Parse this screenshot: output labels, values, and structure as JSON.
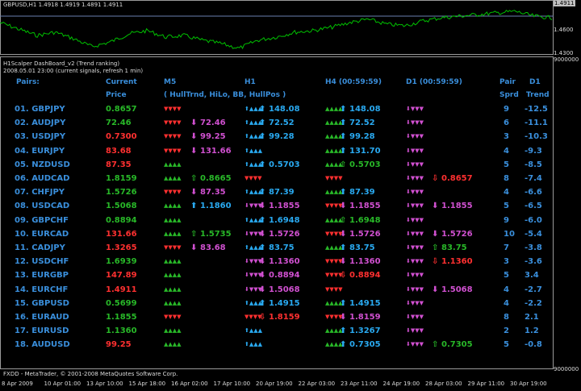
{
  "top_chart": {
    "title": "GBPUSD,H1  1.4918 1.4919 1.4891 1.4911",
    "price_labels": [
      "1.4911",
      "1.4600",
      "1.4300"
    ],
    "scale_color": "#00c000"
  },
  "main_chart": {
    "scale_top": "9000000",
    "scale_bottom": "9000000",
    "indicator_title": "H1Scalper DashBoard_v2 (Trend ranking)",
    "info_line": "2008.05.01 23:00  (current signals, refresh 1 min)",
    "footer": "FXDD - MetaTrader, © 2001-2008 MetaQuotes Software Corp.",
    "x_ticks": [
      "8 Apr 2009",
      "10 Apr 01:00",
      "13 Apr 10:00",
      "15 Apr 18:00",
      "16 Apr 02:00",
      "17 Apr 10:00",
      "20 Apr 19:00",
      "22 Apr 03:00",
      "23 Apr 11:00",
      "24 Apr 19:00",
      "28 Apr 03:00",
      "29 Apr 11:00",
      "30 Apr 19:00"
    ]
  },
  "dashboard": {
    "headers": {
      "pairs": "Pairs:",
      "current": "Current",
      "price": "Price",
      "m5": "M5",
      "m5_sub": "( HullTrnd, HiLo, BB, HullPos )",
      "h1": "H1",
      "h4": "H4 (00:59:59)",
      "d1": "D1 (00:59:59)",
      "pair": "Pair",
      "sprd": "Sprd",
      "d1trend": "D1",
      "trend": "Trend"
    },
    "rows": [
      {
        "name": "01. GBPJPY",
        "price": "0.8657",
        "pc": "green",
        "m5": "▼▼▼▼",
        "m5c": "red",
        "m5a": "",
        "m5v": "",
        "m5vc": "",
        "h1": "⬆▲▲▲",
        "h1c": "blue",
        "h1a": "⬆",
        "h1v": "148.08",
        "h1vc": "blue",
        "h4": "▲▲▲▲",
        "h4c": "green",
        "h4a": "⬆",
        "h4v": "148.08",
        "h4vc": "blue",
        "d1": "⬇▼▼▼",
        "d1c": "magenta",
        "d1a": "",
        "d1v": "",
        "d1vc": "",
        "sprd": "9",
        "trend": "-12.5"
      },
      {
        "name": "02. AUDJPY",
        "price": "72.46",
        "pc": "green",
        "m5": "▼▼▼▼",
        "m5c": "red",
        "m5a": "⬇",
        "m5v": "72.46",
        "m5vc": "magenta",
        "h1": "⬆▲▲▲",
        "h1c": "blue",
        "h1a": "⬆",
        "h1v": "72.52",
        "h1vc": "blue",
        "h4": "▲▲▲▲",
        "h4c": "green",
        "h4a": "⬆",
        "h4v": "72.52",
        "h4vc": "blue",
        "d1": "⬇▼▼▼",
        "d1c": "magenta",
        "d1a": "",
        "d1v": "",
        "d1vc": "",
        "sprd": "6",
        "trend": "-11.1"
      },
      {
        "name": "03. USDJPY",
        "price": "0.7300",
        "pc": "red",
        "m5": "▼▼▼▼",
        "m5c": "red",
        "m5a": "⬇",
        "m5v": "99.25",
        "m5vc": "magenta",
        "h1": "⬆▲▲▲",
        "h1c": "blue",
        "h1a": "⬆",
        "h1v": "99.28",
        "h1vc": "blue",
        "h4": "▲▲▲▲",
        "h4c": "green",
        "h4a": "⬆",
        "h4v": "99.28",
        "h4vc": "blue",
        "d1": "⬇▼▼▼",
        "d1c": "magenta",
        "d1a": "",
        "d1v": "",
        "d1vc": "",
        "sprd": "3",
        "trend": "-10.3"
      },
      {
        "name": "04. EURJPY",
        "price": "83.68",
        "pc": "red",
        "m5": "▼▼▼▼",
        "m5c": "red",
        "m5a": "⬇",
        "m5v": "131.66",
        "m5vc": "magenta",
        "h1": "⬆▲▲▲",
        "h1c": "blue",
        "h1a": "",
        "h1v": "",
        "h1vc": "",
        "h4": "▲▲▲▲",
        "h4c": "green",
        "h4a": "⬆",
        "h4v": "131.70",
        "h4vc": "blue",
        "d1": "⬇▼▼▼",
        "d1c": "magenta",
        "d1a": "",
        "d1v": "",
        "d1vc": "",
        "sprd": "4",
        "trend": "-9.3"
      },
      {
        "name": "05. NZDUSD",
        "price": "87.35",
        "pc": "red",
        "m5": "▲▲▲▲",
        "m5c": "green",
        "m5a": "",
        "m5v": "",
        "m5vc": "",
        "h1": "⬆▲▲▲",
        "h1c": "blue",
        "h1a": "⬆",
        "h1v": "0.5703",
        "h1vc": "blue",
        "h4": "▲▲▲▲",
        "h4c": "green",
        "h4a": "⇧",
        "h4v": "0.5703",
        "h4vc": "green",
        "d1": "⬇▼▼▼",
        "d1c": "magenta",
        "d1a": "",
        "d1v": "",
        "d1vc": "",
        "sprd": "5",
        "trend": "-8.5"
      },
      {
        "name": "06. AUDCAD",
        "price": "1.8159",
        "pc": "green",
        "m5": "▲▲▲▲",
        "m5c": "green",
        "m5a": "⇧",
        "m5v": "0.8665",
        "m5vc": "green",
        "h1": "▼▼▼▼",
        "h1c": "red",
        "h1a": "",
        "h1v": "",
        "h1vc": "",
        "h4": "▼▼▼▼",
        "h4c": "red",
        "h4a": "",
        "h4v": "",
        "h4vc": "",
        "d1": "⬇▼▼▼",
        "d1c": "magenta",
        "d1a": "⇩",
        "d1v": "0.8657",
        "d1vc": "red",
        "sprd": "8",
        "trend": "-7.4"
      },
      {
        "name": "07. CHFJPY",
        "price": "1.5726",
        "pc": "green",
        "m5": "▼▼▼▼",
        "m5c": "red",
        "m5a": "⬇",
        "m5v": "87.35",
        "m5vc": "magenta",
        "h1": "⬆▲▲▲",
        "h1c": "blue",
        "h1a": "⬆",
        "h1v": "87.39",
        "h1vc": "blue",
        "h4": "▲▲▲▲",
        "h4c": "green",
        "h4a": "⬆",
        "h4v": "87.39",
        "h4vc": "blue",
        "d1": "⬇▼▼▼",
        "d1c": "magenta",
        "d1a": "",
        "d1v": "",
        "d1vc": "",
        "sprd": "4",
        "trend": "-6.6"
      },
      {
        "name": "08. USDCAD",
        "price": "1.5068",
        "pc": "green",
        "m5": "▲▲▲▲",
        "m5c": "green",
        "m5a": "⬆",
        "m5v": "1.1860",
        "m5vc": "blue",
        "h1": "⬇▼▼▼",
        "h1c": "magenta",
        "h1a": "⬇",
        "h1v": "1.1855",
        "h1vc": "magenta",
        "h4": "▼▼▼▼",
        "h4c": "red",
        "h4a": "⬇",
        "h4v": "1.1855",
        "h4vc": "magenta",
        "d1": "⬇▼▼▼",
        "d1c": "magenta",
        "d1a": "⬇",
        "d1v": "1.1855",
        "d1vc": "magenta",
        "sprd": "5",
        "trend": "-6.5"
      },
      {
        "name": "09. GBPCHF",
        "price": "0.8894",
        "pc": "green",
        "m5": "▲▲▲▲",
        "m5c": "green",
        "m5a": "",
        "m5v": "",
        "m5vc": "",
        "h1": "⬆▲▲▲",
        "h1c": "blue",
        "h1a": "⬆",
        "h1v": "1.6948",
        "h1vc": "blue",
        "h4": "▲▲▲▲",
        "h4c": "green",
        "h4a": "⇧",
        "h4v": "1.6948",
        "h4vc": "green",
        "d1": "⬇▼▼▼",
        "d1c": "magenta",
        "d1a": "",
        "d1v": "",
        "d1vc": "",
        "sprd": "9",
        "trend": "-6.0"
      },
      {
        "name": "10. EURCAD",
        "price": "131.66",
        "pc": "red",
        "m5": "▲▲▲▲",
        "m5c": "green",
        "m5a": "⇧",
        "m5v": "1.5735",
        "m5vc": "green",
        "h1": "⬇▼▼▼",
        "h1c": "magenta",
        "h1a": "⬇",
        "h1v": "1.5726",
        "h1vc": "magenta",
        "h4": "▼▼▼▼",
        "h4c": "red",
        "h4a": "⬇",
        "h4v": "1.5726",
        "h4vc": "magenta",
        "d1": "⬇▼▼▼",
        "d1c": "magenta",
        "d1a": "⬇",
        "d1v": "1.5726",
        "d1vc": "magenta",
        "sprd": "10",
        "trend": "-5.4"
      },
      {
        "name": "11. CADJPY",
        "price": "1.3265",
        "pc": "red",
        "m5": "▼▼▼▼",
        "m5c": "red",
        "m5a": "⬇",
        "m5v": "83.68",
        "m5vc": "magenta",
        "h1": "⬆▲▲▲",
        "h1c": "blue",
        "h1a": "⬆",
        "h1v": "83.75",
        "h1vc": "blue",
        "h4": "▲▲▲▲",
        "h4c": "green",
        "h4a": "⬆",
        "h4v": "83.75",
        "h4vc": "blue",
        "d1": "⬇▼▼▼",
        "d1c": "magenta",
        "d1a": "⇧",
        "d1v": "83.75",
        "d1vc": "green",
        "sprd": "7",
        "trend": "-3.8"
      },
      {
        "name": "12. USDCHF",
        "price": "1.6939",
        "pc": "green",
        "m5": "▲▲▲▲",
        "m5c": "green",
        "m5a": "",
        "m5v": "",
        "m5vc": "",
        "h1": "⬇▼▼▼",
        "h1c": "magenta",
        "h1a": "⬇",
        "h1v": "1.1360",
        "h1vc": "magenta",
        "h4": "▼▼▼▼",
        "h4c": "red",
        "h4a": "⬇",
        "h4v": "1.1360",
        "h4vc": "magenta",
        "d1": "⬇▼▼▼",
        "d1c": "magenta",
        "d1a": "⇩",
        "d1v": "1.1360",
        "d1vc": "red",
        "sprd": "3",
        "trend": "-3.6"
      },
      {
        "name": "13. EURGBP",
        "price": "147.89",
        "pc": "red",
        "m5": "▲▲▲▲",
        "m5c": "green",
        "m5a": "",
        "m5v": "",
        "m5vc": "",
        "h1": "⬇▼▼▼",
        "h1c": "magenta",
        "h1a": "⬇",
        "h1v": "0.8894",
        "h1vc": "magenta",
        "h4": "▼▼▼▼",
        "h4c": "red",
        "h4a": "⇩",
        "h4v": "0.8894",
        "h4vc": "red",
        "d1": "⬇▼▼▼",
        "d1c": "magenta",
        "d1a": "",
        "d1v": "",
        "d1vc": "",
        "sprd": "5",
        "trend": "3.4"
      },
      {
        "name": "14. EURCHF",
        "price": "1.4911",
        "pc": "red",
        "m5": "▲▲▲▲",
        "m5c": "green",
        "m5a": "",
        "m5v": "",
        "m5vc": "",
        "h1": "⬇▼▼▼",
        "h1c": "magenta",
        "h1a": "⬇",
        "h1v": "1.5068",
        "h1vc": "magenta",
        "h4": "▼▼▼▼",
        "h4c": "red",
        "h4a": "",
        "h4v": "",
        "h4vc": "",
        "d1": "⬇▼▼▼",
        "d1c": "magenta",
        "d1a": "⬇",
        "d1v": "1.5068",
        "d1vc": "magenta",
        "sprd": "4",
        "trend": "-2.7"
      },
      {
        "name": "15. GBPUSD",
        "price": "0.5699",
        "pc": "green",
        "m5": "▲▲▲▲",
        "m5c": "green",
        "m5a": "",
        "m5v": "",
        "m5vc": "",
        "h1": "⬆▲▲▲",
        "h1c": "blue",
        "h1a": "⬆",
        "h1v": "1.4915",
        "h1vc": "blue",
        "h4": "▲▲▲▲",
        "h4c": "green",
        "h4a": "⬆",
        "h4v": "1.4915",
        "h4vc": "blue",
        "d1": "⬇▼▼▼",
        "d1c": "magenta",
        "d1a": "",
        "d1v": "",
        "d1vc": "",
        "sprd": "4",
        "trend": "-2.2"
      },
      {
        "name": "16. EURAUD",
        "price": "1.1855",
        "pc": "green",
        "m5": "▼▼▼▼",
        "m5c": "red",
        "m5a": "",
        "m5v": "",
        "m5vc": "",
        "h1": "▼▼▼▼",
        "h1c": "red",
        "h1a": "⇩",
        "h1v": "1.8159",
        "h1vc": "red",
        "h4": "▼▼▼▼",
        "h4c": "red",
        "h4a": "⬇",
        "h4v": "1.8159",
        "h4vc": "magenta",
        "d1": "⬇▼▼▼",
        "d1c": "magenta",
        "d1a": "",
        "d1v": "",
        "d1vc": "",
        "sprd": "8",
        "trend": "2.1"
      },
      {
        "name": "17. EURUSD",
        "price": "1.1360",
        "pc": "green",
        "m5": "▲▲▲▲",
        "m5c": "green",
        "m5a": "",
        "m5v": "",
        "m5vc": "",
        "h1": "⬆▲▲▲",
        "h1c": "blue",
        "h1a": "",
        "h1v": "",
        "h1vc": "",
        "h4": "▲▲▲▲",
        "h4c": "green",
        "h4a": "⬆",
        "h4v": "1.3267",
        "h4vc": "blue",
        "d1": "⬇▼▼▼",
        "d1c": "magenta",
        "d1a": "",
        "d1v": "",
        "d1vc": "",
        "sprd": "2",
        "trend": "1.2"
      },
      {
        "name": "18. AUDUSD",
        "price": "99.25",
        "pc": "red",
        "m5": "▲▲▲▲",
        "m5c": "green",
        "m5a": "",
        "m5v": "",
        "m5vc": "",
        "h1": "⬆▲▲▲",
        "h1c": "blue",
        "h1a": "",
        "h1v": "",
        "h1vc": "",
        "h4": "▲▲▲▲",
        "h4c": "green",
        "h4a": "⬆",
        "h4v": "0.7305",
        "h4vc": "blue",
        "d1": "⬇▼▼▼",
        "d1c": "magenta",
        "d1a": "⇧",
        "d1v": "0.7305",
        "d1vc": "green",
        "sprd": "5",
        "trend": "-0.8"
      }
    ]
  }
}
